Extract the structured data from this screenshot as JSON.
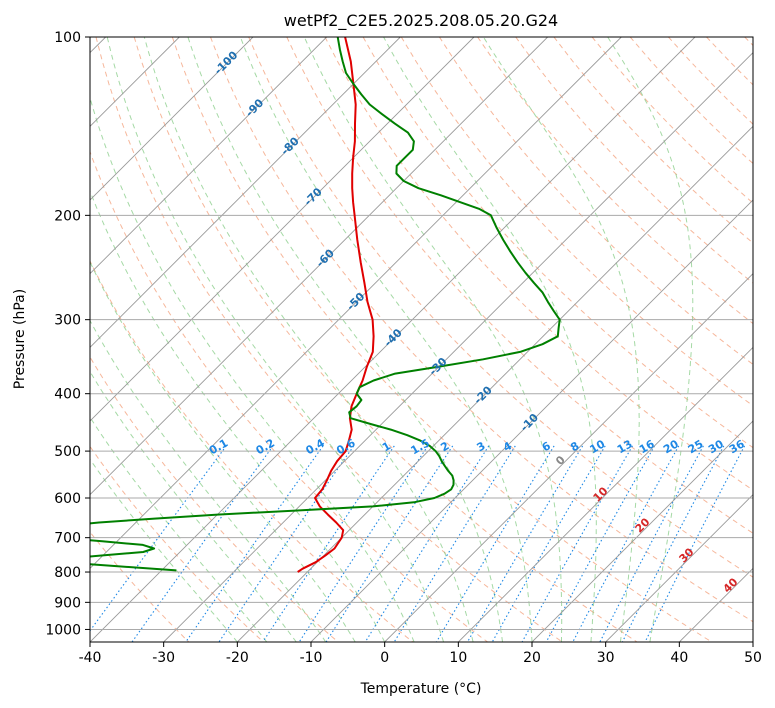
{
  "chart_data": {
    "type": "line",
    "title": "wetPf2_C2E5.2025.208.05.20.G24",
    "xlabel": "Temperature (°C)",
    "ylabel": "Pressure (hPa)",
    "xlim": [
      -40,
      50
    ],
    "ylim": [
      1050,
      100
    ],
    "y_scale": "log",
    "grid": true,
    "x_ticks": [
      -40,
      -30,
      -20,
      -10,
      0,
      10,
      20,
      30,
      40,
      50
    ],
    "y_ticks": [
      100,
      200,
      300,
      400,
      500,
      600,
      700,
      800,
      900,
      1000
    ],
    "colors": {
      "temperature": "#e00000",
      "dewpoint": "#008000",
      "dry_adiabat": "#f4a582",
      "moist_adiabat": "#7fc97f",
      "mixing_ratio": "#1e88e5",
      "isotherm": "#999999",
      "isotherm_label": "#1f6fb0",
      "warm_label": "#d62728"
    },
    "series": [
      {
        "pressure": [
          800,
          790,
          770,
          750,
          730,
          700,
          680,
          660,
          640,
          620,
          600,
          580,
          560,
          540,
          520,
          500,
          480,
          460,
          440,
          420,
          400,
          380,
          360,
          340,
          320,
          300,
          280,
          260,
          240,
          220,
          200,
          190,
          180,
          170,
          160,
          150,
          140,
          130,
          120,
          110,
          100
        ],
        "values": [
          -21.3,
          -21.1,
          -20.2,
          -19.8,
          -19.5,
          -20.0,
          -20.8,
          -22.8,
          -25.0,
          -27.2,
          -29.0,
          -29.2,
          -29.8,
          -30.5,
          -31.0,
          -31.2,
          -32.2,
          -33.3,
          -35.1,
          -36.5,
          -37.5,
          -38.5,
          -39.8,
          -41.0,
          -43.0,
          -45.4,
          -48.5,
          -51.5,
          -54.8,
          -58.3,
          -62.0,
          -64.0,
          -66.0,
          -68.0,
          -70.0,
          -72.0,
          -74.4,
          -76.9,
          -80.0,
          -83.4,
          -87.5
        ]
      },
      {
        "pressure": [
          795,
          780,
          770,
          765,
          760,
          750,
          740,
          730,
          720,
          710,
          700,
          690,
          680,
          670,
          660,
          650,
          640,
          630,
          620,
          610,
          600,
          590,
          580,
          570,
          560,
          550,
          540,
          530,
          520,
          510,
          500,
          490,
          480,
          470,
          460,
          450,
          440,
          430,
          420,
          410,
          400,
          390,
          380,
          370,
          360,
          350,
          340,
          330,
          320,
          310,
          300,
          290,
          280,
          270,
          260,
          250,
          240,
          230,
          220,
          210,
          200,
          195,
          190,
          185,
          180,
          175,
          170,
          165,
          160,
          155,
          150,
          145,
          140,
          135,
          130,
          125,
          120,
          115,
          110,
          105,
          100
        ],
        "values": [
          -38.0,
          -48.0,
          -55.0,
          -56.5,
          -55.0,
          -50.0,
          -45.0,
          -44.0,
          -46.0,
          -52.0,
          -58.0,
          -60.0,
          -60.0,
          -60.0,
          -55.0,
          -48.0,
          -40.0,
          -30.0,
          -20.0,
          -15.0,
          -12.8,
          -12.0,
          -11.7,
          -12.0,
          -12.6,
          -13.4,
          -14.6,
          -15.7,
          -16.8,
          -17.8,
          -19.0,
          -20.5,
          -22.5,
          -25.0,
          -28.0,
          -31.5,
          -35.0,
          -36.0,
          -35.8,
          -36.0,
          -37.5,
          -38.0,
          -37.0,
          -35.0,
          -30.0,
          -25.0,
          -21.0,
          -19.0,
          -18.0,
          -19.0,
          -20.0,
          -22.0,
          -24.0,
          -26.0,
          -28.5,
          -31.0,
          -33.5,
          -36.0,
          -38.5,
          -41.0,
          -43.5,
          -46.0,
          -49.5,
          -53.0,
          -57.0,
          -60.0,
          -62.0,
          -63.0,
          -63.0,
          -63.0,
          -64.0,
          -66.0,
          -69.0,
          -72.0,
          -75.0,
          -77.5,
          -80.0,
          -82.5,
          -84.5,
          -86.5,
          -88.5
        ]
      }
    ],
    "isotherm_labels": [
      "-100",
      "-90",
      "-80",
      "-70",
      "-60",
      "-50",
      "-40",
      "-30",
      "-20",
      "-10"
    ],
    "isotherm_label_values": [
      -100,
      -90,
      -80,
      -70,
      -60,
      -50,
      -40,
      -30,
      -20,
      -10
    ],
    "mixing_ratio_labels": [
      "0.1",
      "0.2",
      "0.4",
      "0.6",
      "1",
      "1.5",
      "2",
      "3",
      "4",
      "6",
      "8",
      "10",
      "13",
      "16",
      "20",
      "25",
      "30",
      "36"
    ],
    "mixing_ratio_values": [
      0.1,
      0.2,
      0.4,
      0.6,
      1,
      1.5,
      2,
      3,
      4,
      6,
      8,
      10,
      13,
      16,
      20,
      25,
      30,
      36
    ],
    "warm_isotherm_labels": [
      "0",
      "10",
      "20",
      "30",
      "40"
    ]
  }
}
